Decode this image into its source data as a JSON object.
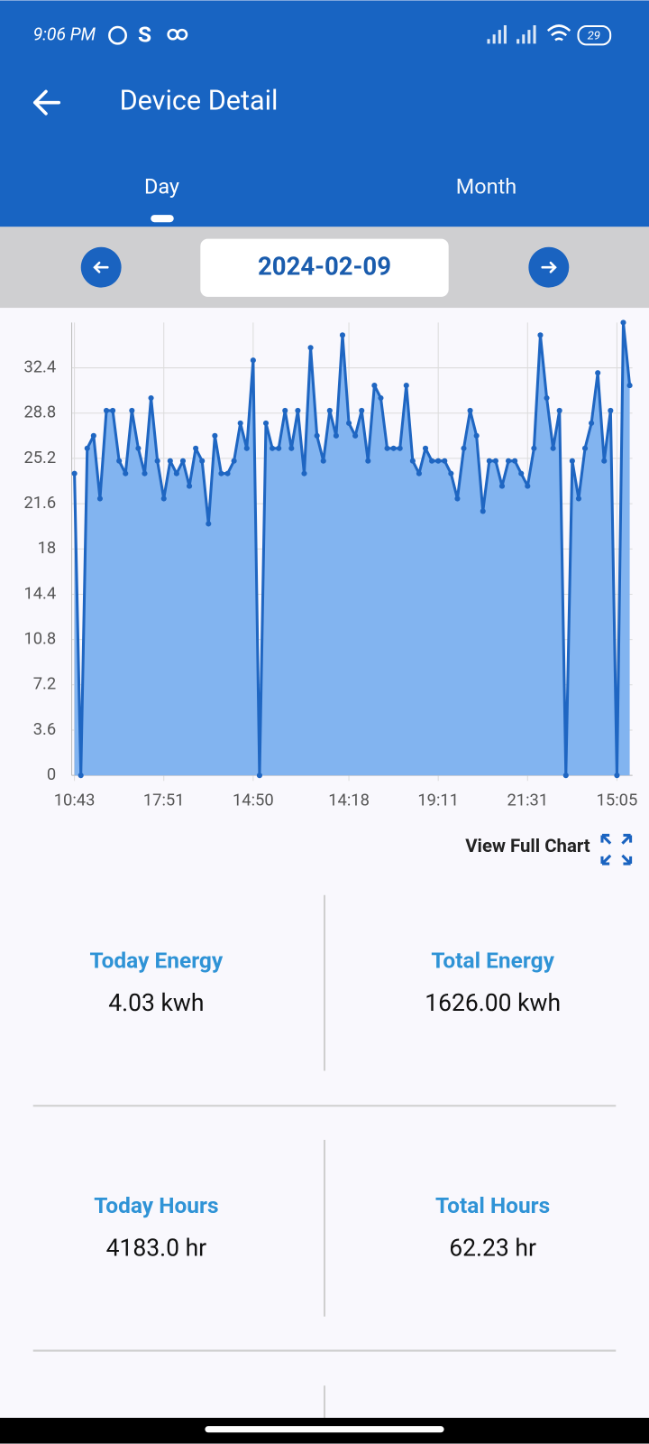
{
  "status_bar": {
    "time": "9:06 PM",
    "s_icon": "S",
    "battery": "29"
  },
  "header": {
    "title": "Device Detail"
  },
  "tabs": [
    "Day",
    "Month"
  ],
  "date": "2024-02-09",
  "chart_data": {
    "type": "area",
    "categories": [
      "10:43",
      null,
      null,
      null,
      null,
      null,
      null,
      null,
      null,
      null,
      null,
      null,
      null,
      null,
      "17:51",
      null,
      null,
      null,
      null,
      null,
      null,
      null,
      null,
      null,
      null,
      null,
      null,
      null,
      "14:50",
      null,
      null,
      null,
      null,
      null,
      null,
      null,
      null,
      null,
      null,
      null,
      null,
      null,
      null,
      "14:18",
      null,
      null,
      null,
      null,
      null,
      null,
      null,
      null,
      null,
      null,
      null,
      null,
      null,
      "19:11",
      null,
      null,
      null,
      null,
      null,
      null,
      null,
      null,
      null,
      null,
      null,
      null,
      null,
      "21:31",
      null,
      null,
      null,
      null,
      null,
      null,
      null,
      null,
      null,
      null,
      null,
      null,
      null,
      "15:05",
      null,
      null
    ],
    "values": [
      24,
      0,
      26,
      27,
      22,
      29,
      29,
      25,
      24,
      29,
      26,
      24,
      30,
      25,
      22,
      25,
      24,
      25,
      23,
      26,
      25,
      20,
      27,
      24,
      24,
      25,
      28,
      26,
      33,
      0,
      28,
      26,
      26,
      29,
      26,
      29,
      24,
      34,
      27,
      25,
      29,
      27,
      35,
      28,
      27,
      29,
      25,
      31,
      30,
      26,
      26,
      26,
      31,
      25,
      24,
      26,
      25,
      25,
      25,
      24,
      22,
      26,
      29,
      27,
      21,
      25,
      25,
      23,
      25,
      25,
      24,
      23,
      26,
      35,
      30,
      26,
      29,
      0,
      25,
      22,
      26,
      28,
      32,
      25,
      29,
      0,
      36,
      31
    ],
    "line_color": "#1f66c2",
    "fill_color": "#82b4f0",
    "ylim": [
      0,
      36
    ],
    "yticks": [
      0,
      3.6,
      7.2,
      10.8,
      14.4,
      18,
      21.6,
      25.2,
      28.8,
      32.4
    ],
    "grid": true
  },
  "view_full_chart": "View Full Chart",
  "stats": [
    {
      "label": "Today Energy",
      "value": "4.03 kwh"
    },
    {
      "label": "Total Energy",
      "value": "1626.00 kwh"
    },
    {
      "label": "Today Hours",
      "value": "4183.0 hr"
    },
    {
      "label": "Total Hours",
      "value": "62.23 hr"
    }
  ]
}
